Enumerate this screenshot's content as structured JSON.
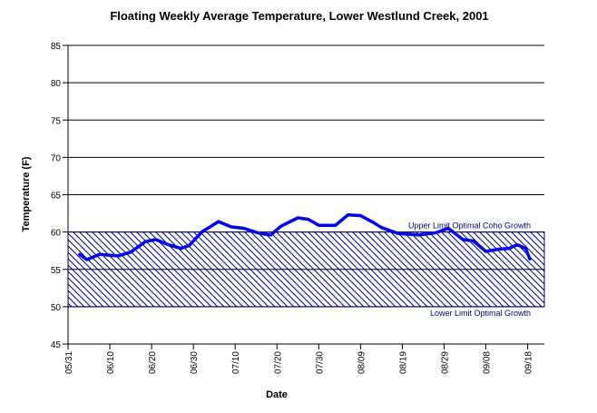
{
  "chart_data": {
    "type": "line",
    "title": "Floating Weekly Average Temperature, Lower Westlund Creek, 2001",
    "x_label": "Date",
    "y_label": "Temperature (F)",
    "x": [
      2.8,
      4.5,
      7.5,
      12,
      15,
      18.5,
      21,
      24,
      27,
      29,
      32,
      36,
      39,
      42,
      46,
      48.5,
      51,
      55,
      57.5,
      60,
      64,
      67,
      70,
      73,
      75,
      79,
      84,
      88,
      91,
      94.5,
      97,
      100,
      103,
      105.5,
      107.5,
      109.5,
      110.5
    ],
    "series": [
      {
        "name": "Temperature",
        "color": "#0000ee",
        "values": [
          57.0,
          56.3,
          57.0,
          56.8,
          57.3,
          58.7,
          59.0,
          58.3,
          57.8,
          58.2,
          60.0,
          61.4,
          60.7,
          60.5,
          59.8,
          59.6,
          60.8,
          61.9,
          61.7,
          60.9,
          60.9,
          62.3,
          62.2,
          61.3,
          60.6,
          59.8,
          59.6,
          59.9,
          60.5,
          59.0,
          58.8,
          57.4,
          57.7,
          57.8,
          58.3,
          57.8,
          56.4
        ]
      }
    ],
    "xlim": [
      0,
      114
    ],
    "xticks": [
      {
        "value": 0,
        "label": "05/31"
      },
      {
        "value": 10,
        "label": "06/10"
      },
      {
        "value": 20,
        "label": "06/20"
      },
      {
        "value": 30,
        "label": "06/30"
      },
      {
        "value": 40,
        "label": "07/10"
      },
      {
        "value": 50,
        "label": "07/20"
      },
      {
        "value": 60,
        "label": "07/30"
      },
      {
        "value": 70,
        "label": "08/09"
      },
      {
        "value": 80,
        "label": "08/19"
      },
      {
        "value": 90,
        "label": "08/29"
      },
      {
        "value": 100,
        "label": "09/08"
      },
      {
        "value": 110,
        "label": "09/18"
      }
    ],
    "ylim": [
      45,
      85
    ],
    "yticks": [
      45,
      50,
      55,
      60,
      65,
      70,
      75,
      80,
      85
    ],
    "grid": true,
    "bands": [
      {
        "from": 50,
        "to": 60,
        "color": "#000080",
        "upper_label": "Upper Limit Optimal Coho Growth",
        "lower_label": "Lower Limit Optimal Growth"
      }
    ]
  }
}
